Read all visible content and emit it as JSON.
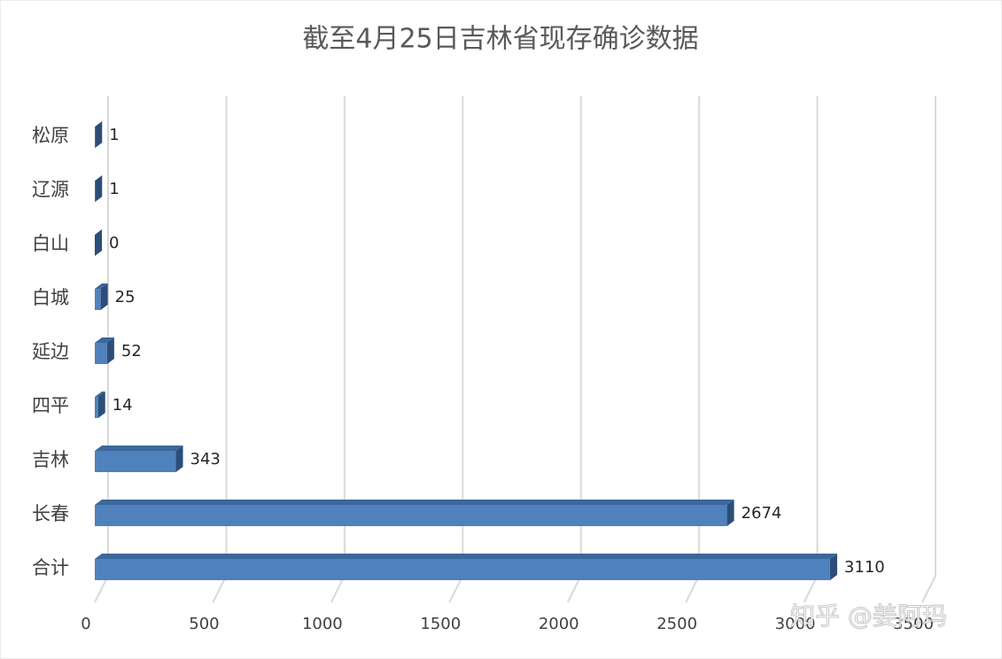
{
  "chart_data": {
    "type": "bar3d_horizontal",
    "title": "截至4月25日吉林省现存确诊数据",
    "categories": [
      "松原",
      "辽源",
      "白山",
      "白城",
      "延边",
      "四平",
      "吉林",
      "长春",
      "合计"
    ],
    "values": [
      1,
      1,
      0,
      25,
      52,
      14,
      343,
      2674,
      3110
    ],
    "color": "#4f81bd",
    "xlim": [
      0,
      3500
    ],
    "xticks": [
      0,
      500,
      1000,
      1500,
      2000,
      2500,
      3000,
      3500
    ],
    "grid": true,
    "watermark": "知乎 @姜阿玛"
  }
}
